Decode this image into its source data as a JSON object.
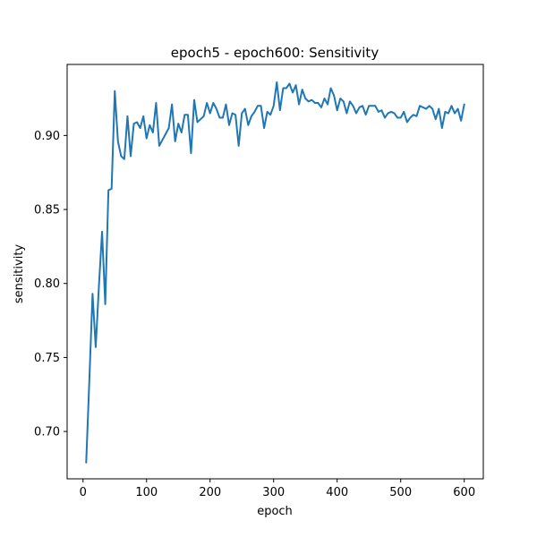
{
  "chart_data": {
    "type": "line",
    "title": "epoch5 - epoch600: Sensitivity",
    "xlabel": "epoch",
    "ylabel": "sensitivity",
    "xlim": [
      -25,
      630
    ],
    "ylim": [
      0.668,
      0.948
    ],
    "xticks": [
      0,
      100,
      200,
      300,
      400,
      500,
      600
    ],
    "yticks": [
      0.7,
      0.75,
      0.8,
      0.85,
      0.9
    ],
    "ytick_labels": [
      "0.70",
      "0.75",
      "0.80",
      "0.85",
      "0.90"
    ],
    "grid": false,
    "line_color": "#1f77b4",
    "series": [
      {
        "x": [
          5,
          10,
          15,
          20,
          25,
          30,
          35,
          40,
          45,
          50,
          55,
          60,
          65,
          70,
          75,
          80,
          85,
          90,
          95,
          100,
          105,
          110,
          115,
          120,
          125,
          130,
          135,
          140,
          145,
          150,
          155,
          160,
          165,
          170,
          175,
          180,
          185,
          190,
          195,
          200,
          205,
          210,
          215,
          220,
          225,
          230,
          235,
          240,
          245,
          250,
          255,
          260,
          265,
          270,
          275,
          280,
          285,
          290,
          295,
          300,
          305,
          310,
          315,
          320,
          325,
          330,
          335,
          340,
          345,
          350,
          355,
          360,
          365,
          370,
          375,
          380,
          385,
          390,
          395,
          400,
          405,
          410,
          415,
          420,
          425,
          430,
          435,
          440,
          445,
          450,
          455,
          460,
          465,
          470,
          475,
          480,
          485,
          490,
          495,
          500,
          505,
          510,
          515,
          520,
          525,
          530,
          535,
          540,
          545,
          550,
          555,
          560,
          565,
          570,
          575,
          580,
          585,
          590,
          595,
          600
        ],
        "values": [
          0.679,
          0.735,
          0.793,
          0.757,
          0.798,
          0.835,
          0.786,
          0.863,
          0.864,
          0.93,
          0.896,
          0.886,
          0.884,
          0.913,
          0.886,
          0.908,
          0.909,
          0.905,
          0.913,
          0.898,
          0.907,
          0.902,
          0.922,
          0.893,
          0.897,
          0.901,
          0.905,
          0.921,
          0.896,
          0.908,
          0.902,
          0.914,
          0.914,
          0.888,
          0.924,
          0.909,
          0.911,
          0.913,
          0.922,
          0.915,
          0.922,
          0.918,
          0.912,
          0.912,
          0.921,
          0.907,
          0.915,
          0.914,
          0.893,
          0.915,
          0.918,
          0.907,
          0.913,
          0.916,
          0.92,
          0.92,
          0.905,
          0.916,
          0.914,
          0.92,
          0.936,
          0.917,
          0.932,
          0.932,
          0.935,
          0.929,
          0.934,
          0.921,
          0.931,
          0.925,
          0.923,
          0.924,
          0.922,
          0.922,
          0.919,
          0.925,
          0.921,
          0.932,
          0.927,
          0.917,
          0.925,
          0.923,
          0.915,
          0.923,
          0.92,
          0.915,
          0.919,
          0.92,
          0.914,
          0.92,
          0.92,
          0.92,
          0.916,
          0.917,
          0.912,
          0.915,
          0.916,
          0.915,
          0.912,
          0.912,
          0.916,
          0.909,
          0.912,
          0.914,
          0.913,
          0.92,
          0.919,
          0.918,
          0.92,
          0.918,
          0.911,
          0.918,
          0.905,
          0.916,
          0.915,
          0.92,
          0.915,
          0.918,
          0.91,
          0.921
        ]
      }
    ]
  }
}
